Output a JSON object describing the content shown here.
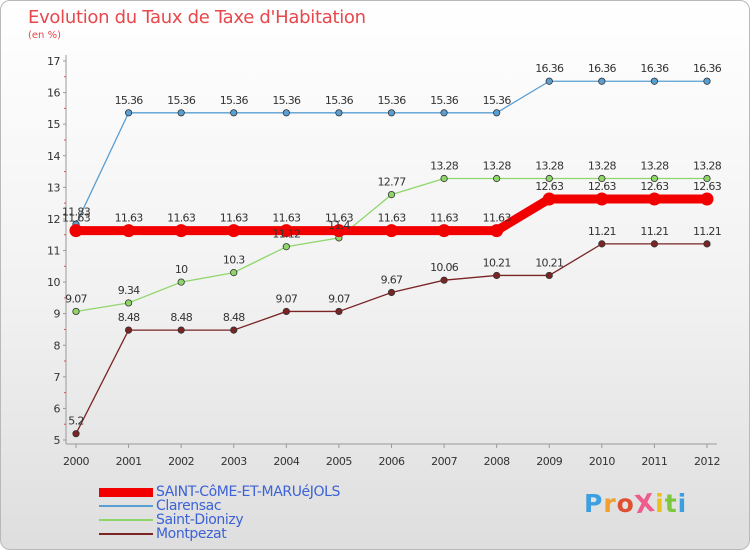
{
  "title": "Evolution du Taux de Taxe d'Habitation",
  "unit": "(en %)",
  "logo": {
    "text": "ProXiti",
    "colors": [
      "#3ca0e0",
      "#f0a030",
      "#e05030",
      "#f05a8c",
      "#e8c020",
      "#7cc83c",
      "#3ca0e0"
    ]
  },
  "chart_data": {
    "type": "line",
    "categories": [
      "2000",
      "2001",
      "2002",
      "2003",
      "2004",
      "2005",
      "2006",
      "2007",
      "2008",
      "2009",
      "2010",
      "2011",
      "2012"
    ],
    "ylim": [
      5,
      17
    ],
    "yticks": [
      "5",
      "6",
      "7",
      "8",
      "9",
      "10",
      "11",
      "12",
      "13",
      "14",
      "15",
      "16",
      "17"
    ],
    "grid": false,
    "legend_position": "bottom-left",
    "series": [
      {
        "name": "Clarensac",
        "color": "#5a9fd2",
        "values": [
          11.83,
          15.36,
          15.36,
          15.36,
          15.36,
          15.36,
          15.36,
          15.36,
          15.36,
          16.36,
          16.36,
          16.36,
          16.36
        ],
        "labels": [
          "11.83",
          "15.36",
          "15.36",
          "15.36",
          "15.36",
          "15.36",
          "15.36",
          "15.36",
          "15.36",
          "16.36",
          "16.36",
          "16.36",
          "16.36"
        ]
      },
      {
        "name": "Saint-Dionizy",
        "color": "#8fd66a",
        "values": [
          9.07,
          9.34,
          10,
          10.3,
          11.12,
          11.4,
          12.77,
          13.28,
          13.28,
          13.28,
          13.28,
          13.28,
          13.28
        ],
        "labels": [
          "9.07",
          "9.34",
          "10",
          "10.3",
          "11.12",
          "11.4",
          "12.77",
          "13.28",
          "13.28",
          "13.28",
          "13.28",
          "13.28",
          "13.28"
        ]
      },
      {
        "name": "Montpezat",
        "color": "#7a2424",
        "values": [
          5.2,
          8.48,
          8.48,
          8.48,
          9.07,
          9.07,
          9.67,
          10.06,
          10.21,
          10.21,
          11.21,
          11.21,
          11.21
        ],
        "labels": [
          "5.2",
          "8.48",
          "8.48",
          "8.48",
          "9.07",
          "9.07",
          "9.67",
          "10.06",
          "10.21",
          "10.21",
          "11.21",
          "11.21",
          "11.21"
        ]
      },
      {
        "name": "SAINT-CôME-ET-MARUéJOLS",
        "color": "#f20000",
        "thick": true,
        "values": [
          11.63,
          11.63,
          11.63,
          11.63,
          11.63,
          11.63,
          11.63,
          11.63,
          11.63,
          12.63,
          12.63,
          12.63,
          12.63
        ],
        "labels": [
          "11.63",
          "11.63",
          "11.63",
          "11.63",
          "11.63",
          "11.63",
          "11.63",
          "11.63",
          "11.63",
          "12.63",
          "12.63",
          "12.63",
          "12.63"
        ]
      }
    ],
    "legend": [
      {
        "name": "SAINT-CôME-ET-MARUéJOLS",
        "color": "#f20000",
        "thick": true
      },
      {
        "name": "Clarensac",
        "color": "#5a9fd2"
      },
      {
        "name": "Saint-Dionizy",
        "color": "#8fd66a"
      },
      {
        "name": "Montpezat",
        "color": "#7a2424"
      }
    ]
  }
}
